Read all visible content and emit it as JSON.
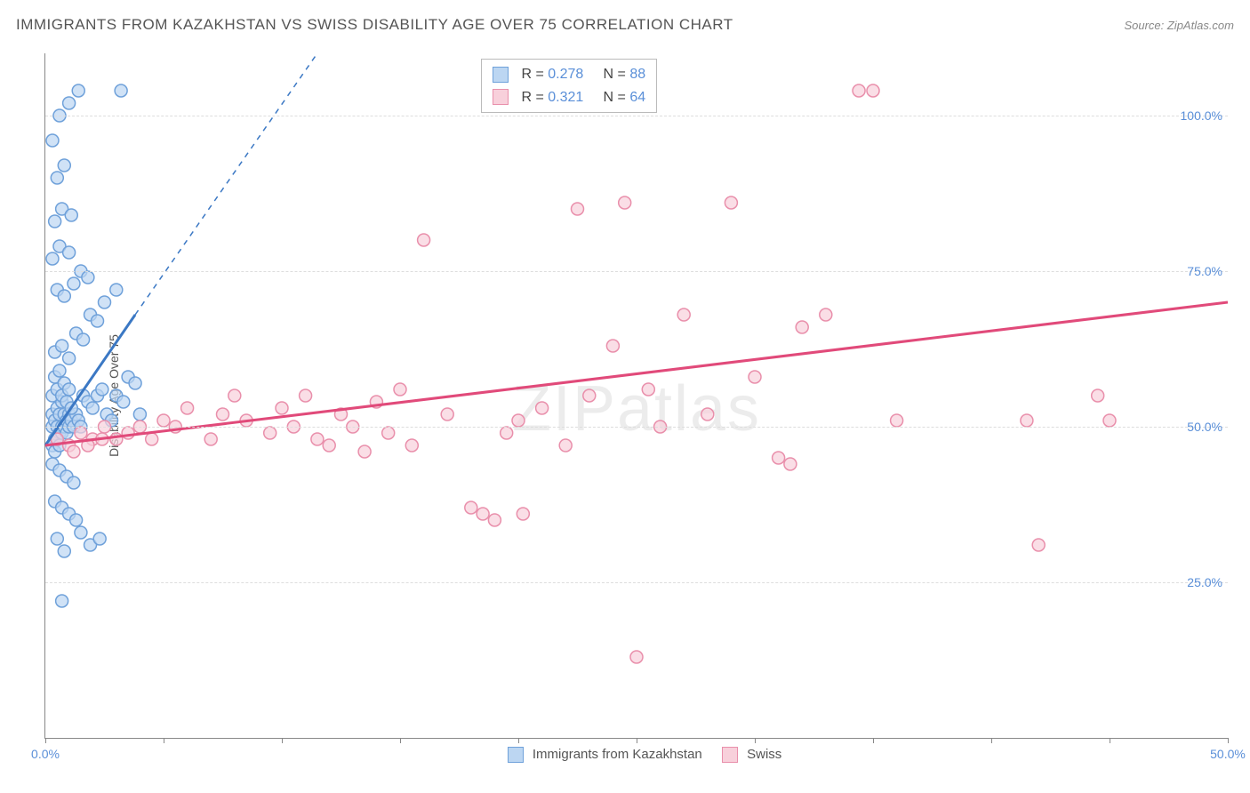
{
  "title": "IMMIGRANTS FROM KAZAKHSTAN VS SWISS DISABILITY AGE OVER 75 CORRELATION CHART",
  "source_label": "Source: ",
  "source_name": "ZipAtlas.com",
  "ylabel": "Disability Age Over 75",
  "watermark": "ZIPatlas",
  "chart": {
    "type": "scatter",
    "xlim": [
      0,
      50
    ],
    "ylim": [
      0,
      110
    ],
    "x_ticks": [
      0,
      5,
      10,
      15,
      20,
      25,
      30,
      35,
      40,
      45,
      50
    ],
    "x_tick_labels": {
      "0": "0.0%",
      "50": "50.0%"
    },
    "y_grid": [
      25,
      50,
      75,
      100
    ],
    "y_tick_labels": {
      "25": "25.0%",
      "50": "50.0%",
      "75": "75.0%",
      "100": "100.0%"
    },
    "background_color": "#ffffff",
    "grid_color": "#dddddd",
    "axis_color": "#888888",
    "marker_radius": 7,
    "marker_stroke_width": 1.5,
    "series": [
      {
        "id": "kazakhstan",
        "label": "Immigrants from Kazakhstan",
        "fill": "#bcd6f2",
        "stroke": "#6fa1da",
        "line_color": "#3b78c4",
        "R": "0.278",
        "N": "88",
        "trend": {
          "x1": 0,
          "y1": 47,
          "x2": 3.8,
          "y2": 68,
          "dash_x2": 11.5,
          "dash_y2": 110
        },
        "points": [
          [
            0.3,
            50
          ],
          [
            0.3,
            52
          ],
          [
            0.4,
            48
          ],
          [
            0.4,
            51
          ],
          [
            0.5,
            50
          ],
          [
            0.5,
            53
          ],
          [
            0.6,
            49
          ],
          [
            0.6,
            52
          ],
          [
            0.7,
            50
          ],
          [
            0.7,
            54
          ],
          [
            0.3,
            47
          ],
          [
            0.4,
            46
          ],
          [
            0.5,
            48
          ],
          [
            0.6,
            47
          ],
          [
            0.7,
            49
          ],
          [
            0.8,
            50
          ],
          [
            0.8,
            52
          ],
          [
            0.9,
            51
          ],
          [
            0.9,
            49
          ],
          [
            1.0,
            50
          ],
          [
            1.0,
            52
          ],
          [
            1.1,
            51
          ],
          [
            1.2,
            50
          ],
          [
            1.3,
            52
          ],
          [
            1.4,
            51
          ],
          [
            1.5,
            50
          ],
          [
            0.3,
            55
          ],
          [
            0.5,
            56
          ],
          [
            0.7,
            55
          ],
          [
            0.9,
            54
          ],
          [
            1.1,
            53
          ],
          [
            0.4,
            58
          ],
          [
            0.6,
            59
          ],
          [
            0.8,
            57
          ],
          [
            1.0,
            56
          ],
          [
            1.6,
            55
          ],
          [
            1.8,
            54
          ],
          [
            2.0,
            53
          ],
          [
            2.2,
            55
          ],
          [
            2.4,
            56
          ],
          [
            2.6,
            52
          ],
          [
            2.8,
            51
          ],
          [
            3.0,
            55
          ],
          [
            3.3,
            54
          ],
          [
            3.5,
            58
          ],
          [
            3.8,
            57
          ],
          [
            4.0,
            52
          ],
          [
            0.4,
            62
          ],
          [
            0.7,
            63
          ],
          [
            1.0,
            61
          ],
          [
            1.3,
            65
          ],
          [
            1.6,
            64
          ],
          [
            1.9,
            68
          ],
          [
            2.2,
            67
          ],
          [
            0.5,
            72
          ],
          [
            0.8,
            71
          ],
          [
            1.2,
            73
          ],
          [
            1.5,
            75
          ],
          [
            1.8,
            74
          ],
          [
            0.3,
            77
          ],
          [
            0.6,
            79
          ],
          [
            1.0,
            78
          ],
          [
            0.4,
            83
          ],
          [
            0.7,
            85
          ],
          [
            1.1,
            84
          ],
          [
            0.5,
            90
          ],
          [
            0.8,
            92
          ],
          [
            0.3,
            96
          ],
          [
            0.6,
            100
          ],
          [
            1.0,
            102
          ],
          [
            1.4,
            104
          ],
          [
            2.5,
            70
          ],
          [
            3.0,
            72
          ],
          [
            3.2,
            104
          ],
          [
            0.3,
            44
          ],
          [
            0.6,
            43
          ],
          [
            0.9,
            42
          ],
          [
            1.2,
            41
          ],
          [
            0.4,
            38
          ],
          [
            0.7,
            37
          ],
          [
            1.0,
            36
          ],
          [
            1.3,
            35
          ],
          [
            0.5,
            32
          ],
          [
            0.8,
            30
          ],
          [
            1.5,
            33
          ],
          [
            1.9,
            31
          ],
          [
            2.3,
            32
          ],
          [
            0.7,
            22
          ]
        ]
      },
      {
        "id": "swiss",
        "label": "Swiss",
        "fill": "#f8d0db",
        "stroke": "#e98fab",
        "line_color": "#e14a7a",
        "R": "0.321",
        "N": "64",
        "trend": {
          "x1": 0,
          "y1": 47,
          "x2": 50,
          "y2": 70
        },
        "points": [
          [
            0.5,
            48
          ],
          [
            1.0,
            47
          ],
          [
            1.5,
            49
          ],
          [
            2.0,
            48
          ],
          [
            2.5,
            50
          ],
          [
            3.0,
            48
          ],
          [
            3.5,
            49
          ],
          [
            4.0,
            50
          ],
          [
            4.5,
            48
          ],
          [
            1.2,
            46
          ],
          [
            1.8,
            47
          ],
          [
            2.4,
            48
          ],
          [
            5.0,
            51
          ],
          [
            5.5,
            50
          ],
          [
            6.0,
            53
          ],
          [
            7.0,
            48
          ],
          [
            7.5,
            52
          ],
          [
            8.0,
            55
          ],
          [
            8.5,
            51
          ],
          [
            9.5,
            49
          ],
          [
            10.0,
            53
          ],
          [
            10.5,
            50
          ],
          [
            11.0,
            55
          ],
          [
            11.5,
            48
          ],
          [
            12.0,
            47
          ],
          [
            12.5,
            52
          ],
          [
            13.0,
            50
          ],
          [
            13.5,
            46
          ],
          [
            14.0,
            54
          ],
          [
            14.5,
            49
          ],
          [
            15.0,
            56
          ],
          [
            15.5,
            47
          ],
          [
            16.0,
            80
          ],
          [
            17.0,
            52
          ],
          [
            18.0,
            37
          ],
          [
            18.5,
            36
          ],
          [
            19.0,
            35
          ],
          [
            19.5,
            49
          ],
          [
            20.0,
            51
          ],
          [
            20.2,
            36
          ],
          [
            21.0,
            53
          ],
          [
            22.0,
            47
          ],
          [
            22.5,
            85
          ],
          [
            23.0,
            55
          ],
          [
            24.0,
            63
          ],
          [
            24.5,
            86
          ],
          [
            25.0,
            13
          ],
          [
            25.5,
            56
          ],
          [
            26.0,
            50
          ],
          [
            27.0,
            68
          ],
          [
            28.0,
            52
          ],
          [
            29.0,
            86
          ],
          [
            30.0,
            58
          ],
          [
            31.0,
            45
          ],
          [
            31.5,
            44
          ],
          [
            32.0,
            66
          ],
          [
            33.0,
            68
          ],
          [
            34.4,
            104
          ],
          [
            35.0,
            104
          ],
          [
            36.0,
            51
          ],
          [
            42.0,
            31
          ],
          [
            44.5,
            55
          ],
          [
            45.0,
            51
          ],
          [
            41.5,
            51
          ]
        ]
      }
    ]
  },
  "stats_box": {
    "r_label": "R =",
    "n_label": "N ="
  }
}
